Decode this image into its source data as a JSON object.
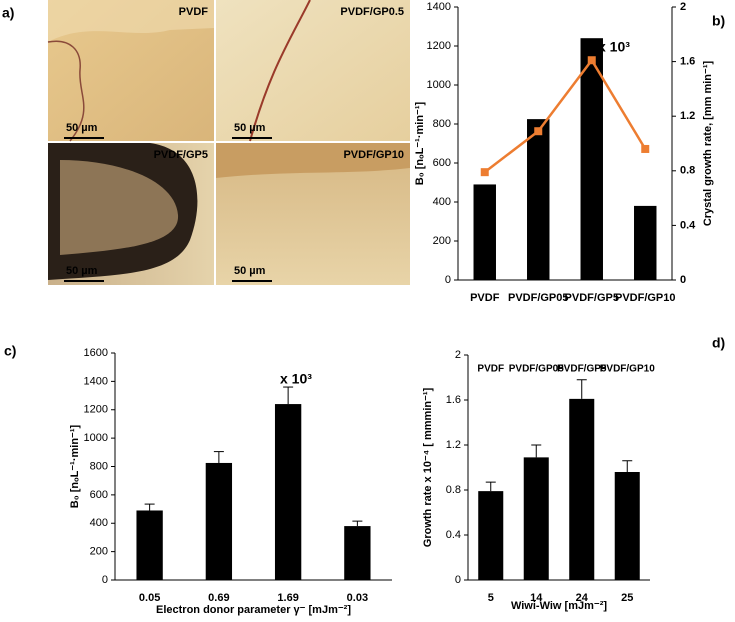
{
  "panels": [
    "a)",
    "b)",
    "c)",
    "d)"
  ],
  "micrographs": [
    {
      "label": "PVDF",
      "scale": "50 µm"
    },
    {
      "label": "PVDF/GP0.5",
      "scale": "50 µm"
    },
    {
      "label": "PVDF/GP5",
      "scale": "50 µm"
    },
    {
      "label": "PVDF/GP10",
      "scale": "50 µm"
    }
  ],
  "chart_data": [
    {
      "type": "bar",
      "categories": [
        "PVDF",
        "PVDF/GP05",
        "PVDF/GP5",
        "PVDF/GP10"
      ],
      "series": [
        {
          "type": "bar",
          "color": "#000000",
          "values": [
            490,
            825,
            1240,
            380
          ]
        },
        {
          "type": "line",
          "axis": "y2",
          "color": "#ed7d31",
          "values": [
            0.79,
            1.09,
            1.61,
            0.96
          ]
        }
      ],
      "ylabel": "B₀ [nₒL⁻¹·min⁻¹]",
      "y2label": "Crystal growth rate, [mm min⁻¹]",
      "annotation": "x 10³",
      "ylim": [
        0,
        1400
      ],
      "yticks": [
        0,
        200,
        400,
        600,
        800,
        1000,
        1200,
        1400
      ],
      "y2lim": [
        0,
        2
      ],
      "y2ticks": [
        0,
        0.4,
        0.8,
        1.2,
        1.6,
        2
      ]
    },
    {
      "type": "bar",
      "categories": [
        "0.05",
        "0.69",
        "1.69",
        "0.03"
      ],
      "values": [
        490,
        825,
        1240,
        380
      ],
      "errors": [
        45,
        80,
        120,
        35
      ],
      "color": "#000000",
      "ylabel": "B₀ [nₒL⁻¹·min⁻¹]",
      "xlabel": "Electron donor parameter γ⁻ [mJm⁻²]",
      "annotation": "x 10³",
      "ylim": [
        0,
        1600
      ],
      "yticks": [
        0,
        200,
        400,
        600,
        800,
        1000,
        1200,
        1400,
        1600
      ]
    },
    {
      "type": "bar",
      "categories": [
        "5",
        "14",
        "24",
        "25"
      ],
      "group_labels": [
        "PVDF",
        "PVDF/GP05",
        "PVDF/GP5",
        "PVDF/GP10"
      ],
      "values": [
        0.79,
        1.09,
        1.61,
        0.96
      ],
      "errors": [
        0.08,
        0.11,
        0.17,
        0.1
      ],
      "color": "#000000",
      "ylabel": "Growth rate x 10⁻⁴ [ mmmin⁻¹]",
      "xlabel": "Wiwi-Wiw [mJm⁻²]",
      "ylim": [
        0,
        2
      ],
      "yticks": [
        0,
        0.4,
        0.8,
        1.2,
        1.6,
        2
      ]
    }
  ]
}
